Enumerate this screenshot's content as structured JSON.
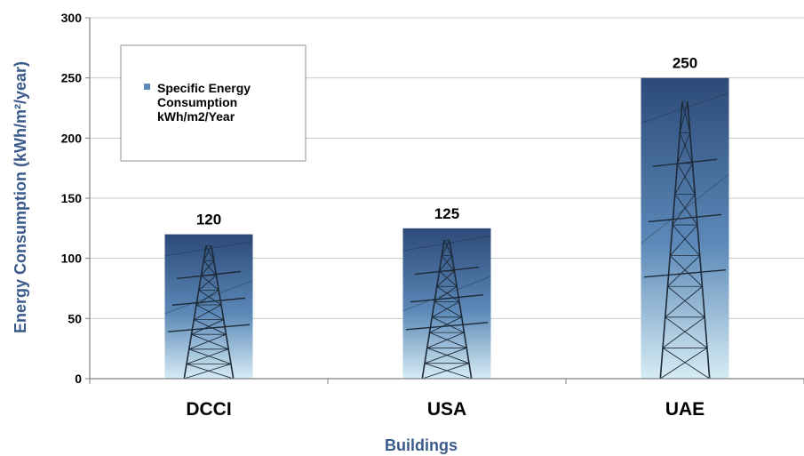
{
  "chart_data": {
    "type": "bar",
    "categories": [
      "DCCI",
      "USA",
      "UAE"
    ],
    "series": [
      {
        "name": "Specific Energy Consumption kWh/m2/Year",
        "values": [
          120,
          125,
          250
        ]
      }
    ],
    "title": "",
    "xlabel": "Buildings",
    "ylabel": "Energy Consumption (kWh/m²/year)",
    "ylim": [
      0,
      300
    ],
    "yticks": [
      0,
      50,
      100,
      150,
      200,
      250,
      300
    ],
    "grid": true,
    "legend": {
      "placement": "top-left",
      "lines": [
        "Specific Energy",
        "Consumption",
        "kWh/m2/Year"
      ]
    },
    "colors": {
      "bar_top": "#2c4a78",
      "bar_mid": "#5c89b8",
      "bar_bottom": "#d6ecf4",
      "tower": "#1e2a38",
      "axis_title": "#3a5a8c",
      "grid": "#c8c8c8"
    }
  }
}
